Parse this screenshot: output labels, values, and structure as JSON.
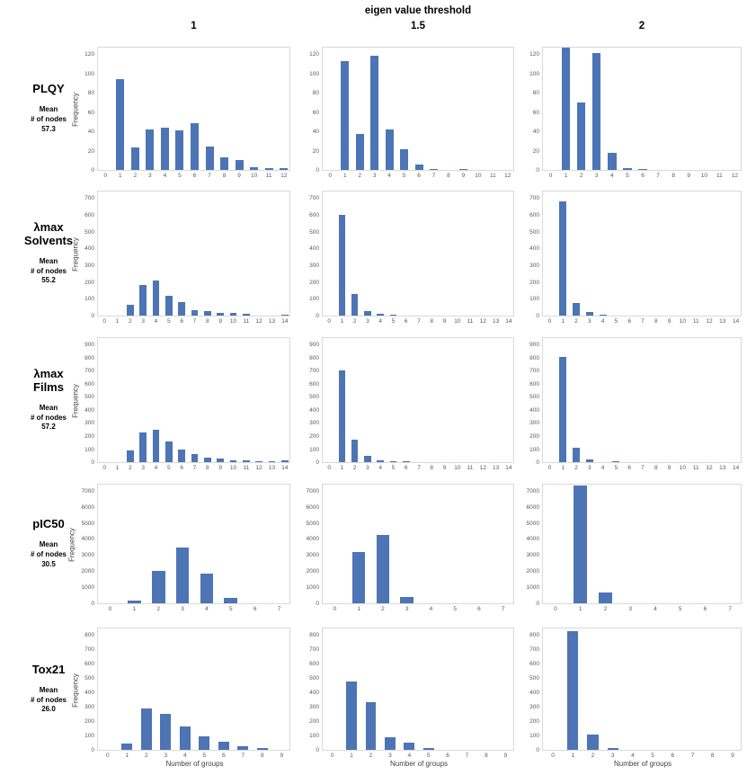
{
  "header": {
    "title": "eigen value threshold",
    "columns": [
      "1",
      "1.5",
      "2"
    ]
  },
  "axis": {
    "ylabel": "Frequency",
    "xlabel": "Number of groups"
  },
  "colors": {
    "bar": "#4d74b5",
    "plot_border": "#d9d9d9",
    "tick_text": "#595959",
    "text": "#000000"
  },
  "chart_data": [
    {
      "type": "bar",
      "row_label": "PLQY",
      "mean_caption": [
        "Mean",
        "# of nodes",
        "57.3"
      ],
      "categories": [
        0,
        1,
        2,
        3,
        4,
        5,
        6,
        7,
        8,
        9,
        10,
        11,
        12
      ],
      "ylim": [
        0,
        120
      ],
      "y_step": 20,
      "series": [
        {
          "name": "1",
          "values": [
            0,
            94,
            23,
            42,
            44,
            41,
            48,
            24,
            13,
            10,
            3,
            2,
            2
          ]
        },
        {
          "name": "1.5",
          "values": [
            0,
            113,
            37,
            118,
            42,
            21,
            6,
            1,
            0,
            1,
            0,
            0,
            0
          ]
        },
        {
          "name": "2",
          "values": [
            0,
            127,
            70,
            121,
            18,
            2,
            1,
            0,
            0,
            0,
            0,
            0,
            0
          ]
        }
      ]
    },
    {
      "type": "bar",
      "row_label": "λmax\nSolvents",
      "mean_caption": [
        "Mean",
        "# of nodes",
        "55.2"
      ],
      "categories": [
        0,
        1,
        2,
        3,
        4,
        5,
        6,
        7,
        8,
        9,
        10,
        11,
        12,
        13,
        14
      ],
      "ylim": [
        0,
        700
      ],
      "y_step": 100,
      "series": [
        {
          "name": "1",
          "values": [
            0,
            0,
            66,
            183,
            206,
            120,
            81,
            32,
            27,
            18,
            16,
            12,
            0,
            0,
            5
          ]
        },
        {
          "name": "1.5",
          "values": [
            0,
            600,
            127,
            28,
            11,
            6,
            0,
            0,
            0,
            0,
            0,
            0,
            0,
            0,
            0
          ]
        },
        {
          "name": "2",
          "values": [
            0,
            680,
            75,
            20,
            7,
            0,
            0,
            0,
            0,
            0,
            0,
            0,
            0,
            0,
            0
          ]
        }
      ]
    },
    {
      "type": "bar",
      "row_label": "λmax\nFilms",
      "mean_caption": [
        "Mean",
        "# of nodes",
        "57.2"
      ],
      "categories": [
        0,
        1,
        2,
        3,
        4,
        5,
        6,
        7,
        8,
        9,
        10,
        11,
        12,
        13,
        14
      ],
      "ylim": [
        0,
        900
      ],
      "y_step": 100,
      "series": [
        {
          "name": "1",
          "values": [
            0,
            0,
            90,
            225,
            250,
            155,
            98,
            60,
            33,
            28,
            13,
            17,
            6,
            6,
            12
          ]
        },
        {
          "name": "1.5",
          "values": [
            0,
            705,
            172,
            46,
            11,
            4,
            4,
            0,
            0,
            0,
            0,
            0,
            0,
            0,
            0
          ]
        },
        {
          "name": "2",
          "values": [
            0,
            805,
            113,
            22,
            0,
            6,
            0,
            0,
            0,
            0,
            0,
            0,
            0,
            0,
            0
          ]
        }
      ]
    },
    {
      "type": "bar",
      "row_label": "pIC50",
      "mean_caption": [
        "Mean",
        "# of nodes",
        "30.5"
      ],
      "categories": [
        0,
        1,
        2,
        3,
        4,
        5,
        6,
        7
      ],
      "ylim": [
        0,
        7000
      ],
      "y_step": 1000,
      "series": [
        {
          "name": "1",
          "values": [
            0,
            190,
            2020,
            3450,
            1820,
            360,
            0,
            0
          ]
        },
        {
          "name": "1.5",
          "values": [
            0,
            3200,
            4250,
            400,
            0,
            0,
            0,
            0
          ]
        },
        {
          "name": "2",
          "values": [
            0,
            7350,
            650,
            0,
            0,
            0,
            0,
            0
          ]
        }
      ]
    },
    {
      "type": "bar",
      "row_label": "Tox21",
      "mean_caption": [
        "Mean",
        "# of nodes",
        "26.0"
      ],
      "categories": [
        0,
        1,
        2,
        3,
        4,
        5,
        6,
        7,
        8,
        9
      ],
      "ylim": [
        0,
        800
      ],
      "y_step": 100,
      "series": [
        {
          "name": "1",
          "values": [
            0,
            46,
            285,
            248,
            160,
            96,
            58,
            27,
            13,
            0
          ]
        },
        {
          "name": "1.5",
          "values": [
            0,
            475,
            330,
            90,
            48,
            15,
            0,
            0,
            0,
            0
          ]
        },
        {
          "name": "2",
          "values": [
            0,
            825,
            104,
            10,
            0,
            0,
            0,
            0,
            0,
            0
          ]
        }
      ]
    }
  ]
}
